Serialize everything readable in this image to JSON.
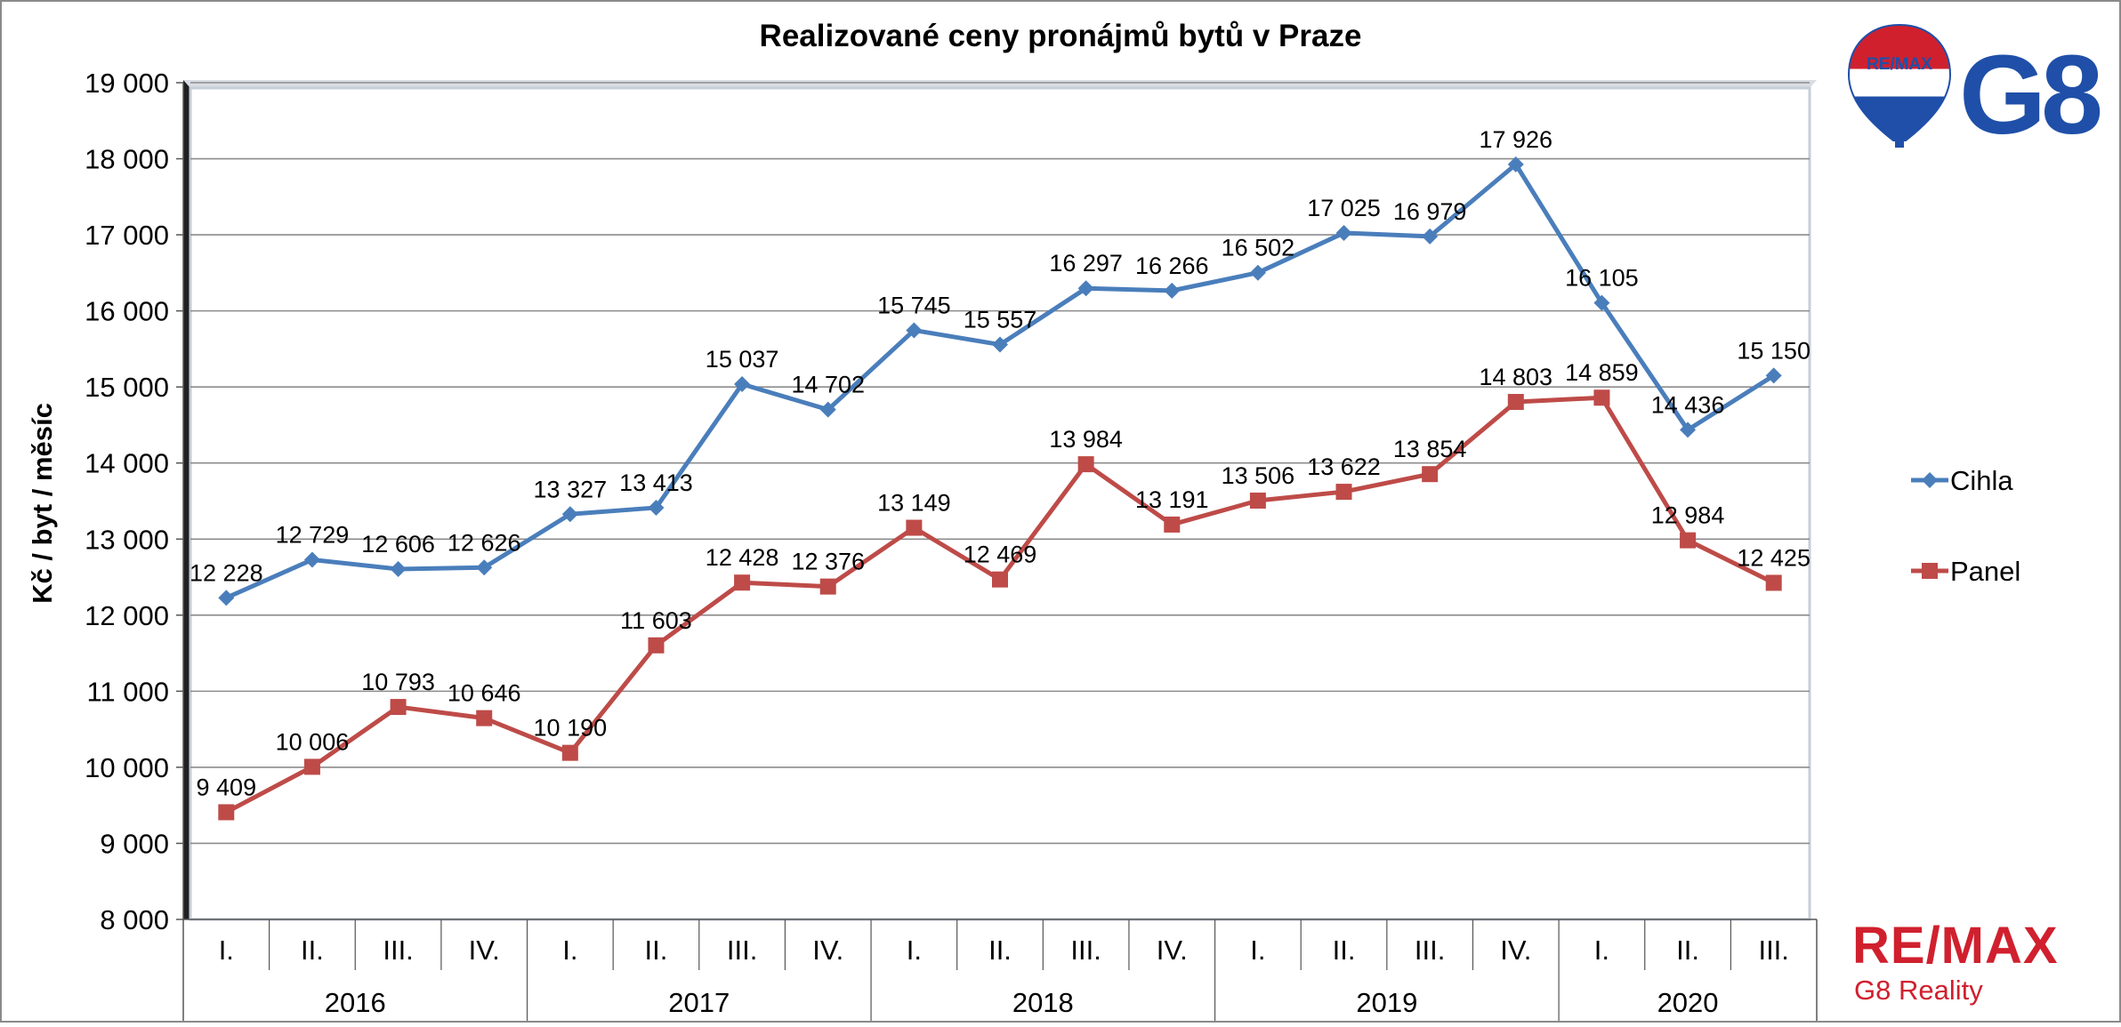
{
  "chart_data": {
    "type": "line",
    "title": "Realizované ceny pronájmů bytů v Praze",
    "ylabel": "Kč / byt / měsíc",
    "xlabel": "",
    "ylim": [
      8000,
      19000
    ],
    "yticks": [
      8000,
      9000,
      10000,
      11000,
      12000,
      13000,
      14000,
      15000,
      16000,
      17000,
      18000,
      19000
    ],
    "ytick_labels": [
      "8 000",
      "9 000",
      "10 000",
      "11 000",
      "12 000",
      "13 000",
      "14 000",
      "15 000",
      "16 000",
      "17 000",
      "18 000",
      "19 000"
    ],
    "grid": true,
    "legend_position": "right",
    "categories": [
      "I.",
      "II.",
      "III.",
      "IV.",
      "I.",
      "II.",
      "III.",
      "IV.",
      "I.",
      "II.",
      "III.",
      "IV.",
      "I.",
      "II.",
      "III.",
      "IV.",
      "I.",
      "II.",
      "III."
    ],
    "groups": [
      {
        "label": "2016",
        "count": 4
      },
      {
        "label": "2017",
        "count": 4
      },
      {
        "label": "2018",
        "count": 4
      },
      {
        "label": "2019",
        "count": 4
      },
      {
        "label": "2020",
        "count": 3
      }
    ],
    "series": [
      {
        "name": "Cihla",
        "color": "#4a7ebb",
        "marker": "diamond",
        "values": [
          12228,
          12729,
          12606,
          12626,
          13327,
          13413,
          15037,
          14702,
          15745,
          15557,
          16297,
          16266,
          16502,
          17025,
          16979,
          17926,
          16105,
          14436,
          15150
        ],
        "labels": [
          "12 228",
          "12 729",
          "12 606",
          "12 626",
          "13 327",
          "13 413",
          "15 037",
          "14 702",
          "15 745",
          "15 557",
          "16 297",
          "16 266",
          "16 502",
          "17 025",
          "16 979",
          "17 926",
          "16 105",
          "14 436",
          "15 150"
        ]
      },
      {
        "name": "Panel",
        "color": "#be4b48",
        "marker": "square",
        "values": [
          9409,
          10006,
          10793,
          10646,
          10190,
          11603,
          12428,
          12376,
          13149,
          12469,
          13984,
          13191,
          13506,
          13622,
          13854,
          14803,
          14859,
          12984,
          12425
        ],
        "labels": [
          "9 409",
          "10 006",
          "10 793",
          "10 646",
          "10 190",
          "11 603",
          "12 428",
          "12 376",
          "13 149",
          "12 469",
          "13 984",
          "13 191",
          "13 506",
          "13 622",
          "13 854",
          "14 803",
          "14 859",
          "12 984",
          "12 425"
        ]
      }
    ]
  },
  "logos": {
    "balloon_text": "RE/MAX",
    "g8_text": "G8",
    "remax_text": "RE/MAX",
    "reality_text": "G8 Reality",
    "blue": "#1f4fa8",
    "red": "#d0202e"
  }
}
